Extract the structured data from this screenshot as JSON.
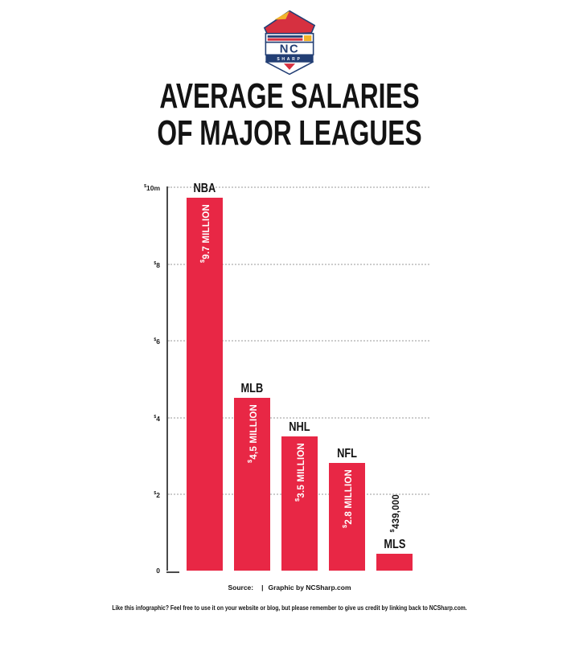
{
  "logo": {
    "nc": "NC",
    "sharp": "SHARP",
    "colors": {
      "navy": "#223e74",
      "red": "#d63040",
      "yellow": "#f2b32b"
    }
  },
  "title": {
    "line1": "AVERAGE SALARIES",
    "line2": "OF MAJOR LEAGUES"
  },
  "chart_data": {
    "type": "bar",
    "title": "AVERAGE SALARIES OF MAJOR LEAGUES",
    "categories": [
      "NBA",
      "MLB",
      "NHL",
      "NFL",
      "MLS"
    ],
    "values": [
      9700000,
      4500000,
      3500000,
      2800000,
      439000
    ],
    "value_labels": [
      "$9.7 MILLION",
      "$4,5 MILLION",
      "$3.5 MILLION",
      "$2.8 MILLION",
      "$439,000"
    ],
    "value_label_inside": [
      true,
      true,
      true,
      true,
      false
    ],
    "ylim": [
      0,
      10000000
    ],
    "yticks": [
      {
        "label": "$10m",
        "value": 10000000
      },
      {
        "label": "$8",
        "value": 8000000
      },
      {
        "label": "$6",
        "value": 6000000
      },
      {
        "label": "$4",
        "value": 4000000
      },
      {
        "label": "$2",
        "value": 2000000
      },
      {
        "label": "0",
        "value": 0
      }
    ],
    "bar_color": "#e82745",
    "grid": "horizontal-dotted",
    "legend": "none"
  },
  "footer": {
    "source_label": "Source:",
    "separator": "|",
    "credit_prefix": "Graphic by",
    "credit_site": "NCSharp.com",
    "disclaimer": "Like this infographic? Feel free to use it on your website or blog, but please remember to give us credit by linking back to NCSharp.com."
  }
}
